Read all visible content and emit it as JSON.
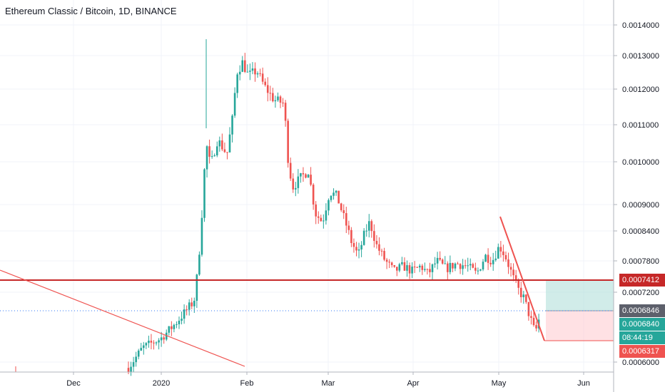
{
  "chart_data": {
    "type": "candlestick",
    "title": "Ethereum Classic / Bitcoin, 1D, BINANCE",
    "y_ticks": [
      "0.0014000",
      "0.0013000",
      "0.0012000",
      "0.0011000",
      "0.0010000",
      "0.0009000",
      "0.0008400",
      "0.0007800",
      "0.0007200",
      "0.0006000"
    ],
    "x_ticks": [
      "Dec",
      "2020",
      "Feb",
      "Mar",
      "Apr",
      "May",
      "Jun"
    ],
    "price_labels": [
      {
        "label": "0.0007412",
        "color": "#c62828",
        "kind": "resistance"
      },
      {
        "label": "0.0006846",
        "color": "#5d606b",
        "kind": "last"
      },
      {
        "label": "0.0006840",
        "color": "#26a69a",
        "kind": "target"
      },
      {
        "label": "08:44:19",
        "color": "#26a69a",
        "kind": "countdown"
      },
      {
        "label": "0.0006317",
        "color": "#ef5350",
        "kind": "stop"
      }
    ],
    "trend": "declining from ~0.00130 in Feb to ~0.00063 in mid-May",
    "colors": {
      "up": "#26a69a",
      "down": "#ef5350",
      "resistance": "#c62828",
      "trendline": "#ef5350"
    }
  }
}
